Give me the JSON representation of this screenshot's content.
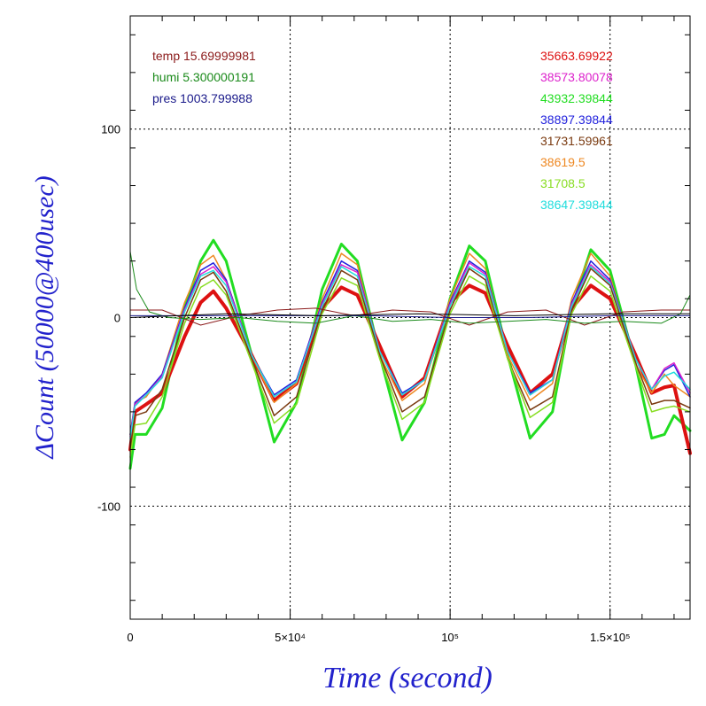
{
  "chart_data": {
    "type": "line",
    "xlabel": "Time (second)",
    "ylabel": "ΔCount (50000@400usec)",
    "xlim": [
      0,
      175000
    ],
    "ylim": [
      -160,
      160
    ],
    "x_ticks": [
      {
        "value": 0,
        "label": "0"
      },
      {
        "value": 50000,
        "label": "5×10⁴"
      },
      {
        "value": 100000,
        "label": "10⁵"
      },
      {
        "value": 150000,
        "label": "1.5×10⁵"
      }
    ],
    "y_ticks": [
      {
        "value": 100,
        "label": "100"
      },
      {
        "value": 0,
        "label": "0"
      },
      {
        "value": -100,
        "label": "-100"
      }
    ],
    "grid": true,
    "env_legend": [
      {
        "label": "temp 15.69999981",
        "color": "#8b1a1a"
      },
      {
        "label": "humi 5.300000191",
        "color": "#1a8a1a"
      },
      {
        "label": "pres 1003.799988",
        "color": "#1a1a8a"
      }
    ],
    "series_legend": [
      {
        "label": "35663.69922",
        "color": "#dd1111"
      },
      {
        "label": "38573.80078",
        "color": "#dd22cc"
      },
      {
        "label": "43932.39844",
        "color": "#22dd22"
      },
      {
        "label": "38897.39844",
        "color": "#2222dd"
      },
      {
        "label": "31731.59961",
        "color": "#7a3a10"
      },
      {
        "label": "38619.5",
        "color": "#ee8822"
      },
      {
        "label": "31708.5",
        "color": "#88dd22"
      },
      {
        "label": "38647.39844",
        "color": "#22dddd"
      }
    ],
    "series": [
      {
        "color": "#22dd22",
        "width": 3,
        "x": [
          0,
          1500,
          5000,
          10000,
          17000,
          22000,
          26000,
          30000,
          38000,
          45000,
          52000,
          60000,
          66000,
          71000,
          78000,
          85000,
          92000,
          100000,
          106000,
          111000,
          118000,
          125000,
          132000,
          138000,
          144000,
          150000,
          158000,
          163000,
          167000,
          170000,
          175000
        ],
        "y": [
          -80,
          -62,
          -62,
          -48,
          5,
          30,
          41,
          30,
          -20,
          -66,
          -45,
          15,
          39,
          30,
          -20,
          -65,
          -45,
          10,
          38,
          30,
          -20,
          -64,
          -50,
          5,
          36,
          25,
          -25,
          -64,
          -62,
          -52,
          -60
        ]
      },
      {
        "color": "#dd1111",
        "width": 4,
        "x": [
          0,
          1500,
          5000,
          10000,
          17000,
          22000,
          26000,
          30000,
          38000,
          45000,
          52000,
          60000,
          66000,
          71000,
          78000,
          85000,
          92000,
          100000,
          106000,
          111000,
          118000,
          125000,
          132000,
          138000,
          144000,
          150000,
          158000,
          163000,
          167000,
          170000,
          175000
        ],
        "y": [
          -70,
          -50,
          -46,
          -40,
          -10,
          8,
          14,
          5,
          -20,
          -44,
          -35,
          5,
          16,
          12,
          -15,
          -42,
          -32,
          8,
          17,
          13,
          -15,
          -40,
          -30,
          5,
          17,
          10,
          -20,
          -40,
          -37,
          -36,
          -72
        ]
      },
      {
        "color": "#ee8822",
        "width": 1.5,
        "x": [
          0,
          1500,
          5000,
          10000,
          17000,
          22000,
          26000,
          30000,
          38000,
          45000,
          52000,
          60000,
          66000,
          71000,
          78000,
          85000,
          92000,
          100000,
          106000,
          111000,
          118000,
          125000,
          132000,
          138000,
          144000,
          150000,
          158000,
          163000,
          167000,
          170000,
          175000
        ],
        "y": [
          -62,
          -45,
          -42,
          -30,
          8,
          28,
          33,
          20,
          -20,
          -45,
          -35,
          10,
          34,
          28,
          -20,
          -44,
          -35,
          10,
          34,
          26,
          -20,
          -44,
          -35,
          10,
          34,
          22,
          -25,
          -40,
          -30,
          -36,
          -42
        ]
      },
      {
        "color": "#2222dd",
        "width": 1.5,
        "x": [
          0,
          1500,
          5000,
          10000,
          17000,
          22000,
          26000,
          30000,
          38000,
          45000,
          52000,
          60000,
          66000,
          71000,
          78000,
          85000,
          92000,
          100000,
          106000,
          111000,
          118000,
          125000,
          132000,
          138000,
          144000,
          150000,
          158000,
          163000,
          167000,
          170000,
          175000
        ],
        "y": [
          -62,
          -45,
          -40,
          -30,
          5,
          25,
          29,
          20,
          -20,
          -41,
          -33,
          8,
          30,
          25,
          -18,
          -40,
          -33,
          8,
          30,
          24,
          -18,
          -40,
          -33,
          8,
          30,
          20,
          -22,
          -38,
          -28,
          -25,
          -42
        ]
      },
      {
        "color": "#dd22cc",
        "width": 1.5,
        "x": [
          0,
          1500,
          5000,
          10000,
          17000,
          22000,
          26000,
          30000,
          38000,
          45000,
          52000,
          60000,
          66000,
          71000,
          78000,
          85000,
          92000,
          100000,
          106000,
          111000,
          118000,
          125000,
          132000,
          138000,
          144000,
          150000,
          158000,
          163000,
          167000,
          170000,
          175000
        ],
        "y": [
          -63,
          -46,
          -41,
          -31,
          4,
          23,
          27,
          19,
          -20,
          -42,
          -34,
          7,
          28,
          24,
          -18,
          -41,
          -33,
          7,
          29,
          23,
          -18,
          -41,
          -33,
          7,
          28,
          19,
          -22,
          -38,
          -27,
          -24,
          -40
        ]
      },
      {
        "color": "#22dddd",
        "width": 1.5,
        "x": [
          0,
          1500,
          5000,
          10000,
          17000,
          22000,
          26000,
          30000,
          38000,
          45000,
          52000,
          60000,
          66000,
          71000,
          78000,
          85000,
          92000,
          100000,
          106000,
          111000,
          118000,
          125000,
          132000,
          138000,
          144000,
          150000,
          158000,
          163000,
          167000,
          170000,
          175000
        ],
        "y": [
          -64,
          -47,
          -41,
          -32,
          3,
          22,
          25,
          17,
          -20,
          -42,
          -34,
          6,
          27,
          22,
          -18,
          -41,
          -33,
          6,
          27,
          22,
          -18,
          -41,
          -33,
          6,
          27,
          18,
          -22,
          -38,
          -31,
          -29,
          -38
        ]
      },
      {
        "color": "#7a3a10",
        "width": 1.5,
        "x": [
          0,
          1500,
          5000,
          10000,
          17000,
          22000,
          26000,
          30000,
          38000,
          45000,
          52000,
          60000,
          66000,
          71000,
          78000,
          85000,
          92000,
          100000,
          106000,
          111000,
          118000,
          125000,
          132000,
          138000,
          144000,
          150000,
          158000,
          163000,
          167000,
          170000,
          175000
        ],
        "y": [
          -70,
          -52,
          -50,
          -38,
          0,
          20,
          24,
          14,
          -22,
          -52,
          -42,
          4,
          25,
          20,
          -20,
          -50,
          -42,
          4,
          26,
          20,
          -22,
          -49,
          -42,
          4,
          26,
          17,
          -24,
          -46,
          -44,
          -44,
          -48
        ]
      },
      {
        "color": "#88dd22",
        "width": 1.5,
        "x": [
          0,
          1500,
          5000,
          10000,
          17000,
          22000,
          26000,
          30000,
          38000,
          45000,
          52000,
          60000,
          66000,
          71000,
          78000,
          85000,
          92000,
          100000,
          106000,
          111000,
          118000,
          125000,
          132000,
          138000,
          144000,
          150000,
          158000,
          163000,
          167000,
          170000,
          175000
        ],
        "y": [
          -74,
          -57,
          -56,
          -42,
          -3,
          16,
          20,
          12,
          -24,
          -56,
          -46,
          2,
          21,
          17,
          -22,
          -54,
          -45,
          2,
          22,
          17,
          -22,
          -53,
          -45,
          2,
          22,
          14,
          -26,
          -50,
          -48,
          -47,
          -50
        ]
      },
      {
        "color": "#8b1a1a",
        "width": 1,
        "x": [
          0,
          10000,
          22000,
          34000,
          46000,
          58000,
          70000,
          82000,
          94000,
          106000,
          118000,
          130000,
          142000,
          154000,
          166000,
          175000
        ],
        "y": [
          4,
          4,
          -4,
          1,
          4,
          5,
          1,
          4,
          3,
          -4,
          3,
          4,
          -4,
          3,
          4,
          4
        ]
      },
      {
        "color": "#1a8a1a",
        "width": 1,
        "x": [
          0,
          2000,
          6000,
          12000,
          22000,
          34000,
          46000,
          58000,
          70000,
          82000,
          94000,
          106000,
          118000,
          130000,
          142000,
          154000,
          166000,
          172000,
          175000
        ],
        "y": [
          35,
          15,
          3,
          0,
          -1,
          0,
          -2,
          -3,
          1,
          -2,
          -1,
          -3,
          -2,
          -1,
          -3,
          -2,
          -3,
          2,
          12
        ]
      },
      {
        "color": "#1a1a8a",
        "width": 1,
        "x": [
          0,
          25000,
          50000,
          75000,
          100000,
          125000,
          150000,
          175000
        ],
        "y": [
          1,
          1,
          1,
          1,
          0,
          0,
          1,
          1
        ]
      },
      {
        "color": "#000000",
        "width": 1,
        "x": [
          0,
          30000,
          60000,
          90000,
          120000,
          150000,
          175000
        ],
        "y": [
          0,
          2,
          1,
          2,
          1,
          2,
          2
        ]
      }
    ]
  }
}
